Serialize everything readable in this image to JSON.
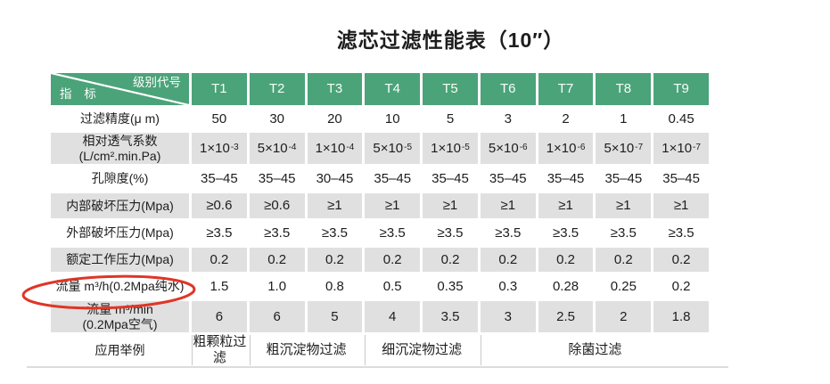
{
  "title": "滤芯过滤性能表（10″）",
  "colors": {
    "header_green": "#4ba37a",
    "row_shade_gray": "#e0e0e0",
    "annotation_red": "#e03526",
    "bottom_rule_gray": "#dcdcdc"
  },
  "table": {
    "corner": {
      "top_right": "级别代号",
      "bottom_left": "指 标"
    },
    "columns": [
      "T1",
      "T2",
      "T3",
      "T4",
      "T5",
      "T6",
      "T7",
      "T8",
      "T9"
    ],
    "rows": [
      {
        "label_lines": [
          "过滤精度(μ m)"
        ],
        "values": [
          "50",
          "30",
          "20",
          "10",
          "5",
          "3",
          "2",
          "1",
          "0.45"
        ]
      },
      {
        "label_lines": [
          "相对透气系数",
          "(L/cm².min.Pa)"
        ],
        "values": [
          {
            "t": "1×10",
            "sup": "-3"
          },
          {
            "t": "5×10",
            "sup": "-4"
          },
          {
            "t": "1×10",
            "sup": "-4"
          },
          {
            "t": "5×10",
            "sup": "-5"
          },
          {
            "t": "1×10",
            "sup": "-5"
          },
          {
            "t": "5×10",
            "sup": "-6"
          },
          {
            "t": "1×10",
            "sup": "-6"
          },
          {
            "t": "5×10",
            "sup": "-7"
          },
          {
            "t": "1×10",
            "sup": "-7"
          }
        ]
      },
      {
        "label_lines": [
          "孔隙度(%)"
        ],
        "values": [
          "35–45",
          "35–45",
          "30–45",
          "35–45",
          "35–45",
          "35–45",
          "35–45",
          "35–45",
          "35–45"
        ]
      },
      {
        "label_lines": [
          "内部破坏压力(Mpa)"
        ],
        "values": [
          "≥0.6",
          "≥0.6",
          "≥1",
          "≥1",
          "≥1",
          "≥1",
          "≥1",
          "≥1",
          "≥1"
        ]
      },
      {
        "label_lines": [
          "外部破坏压力(Mpa)"
        ],
        "values": [
          "≥3.5",
          "≥3.5",
          "≥3.5",
          "≥3.5",
          "≥3.5",
          "≥3.5",
          "≥3.5",
          "≥3.5",
          "≥3.5"
        ]
      },
      {
        "label_lines": [
          "额定工作压力(Mpa)"
        ],
        "values": [
          "0.2",
          "0.2",
          "0.2",
          "0.2",
          "0.2",
          "0.2",
          "0.2",
          "0.2",
          "0.2"
        ]
      },
      {
        "label_lines": [
          "流量 m³/h(0.2Mpa纯水)"
        ],
        "circled": true,
        "values": [
          "1.5",
          "1.0",
          "0.8",
          "0.5",
          "0.35",
          "0.3",
          "0.28",
          "0.25",
          "0.2"
        ]
      },
      {
        "label_lines": [
          "流量 m³/min",
          "(0.2Mpa空气)"
        ],
        "values": [
          "6",
          "6",
          "5",
          "4",
          "3.5",
          "3",
          "2.5",
          "2",
          "1.8"
        ]
      }
    ],
    "footer": {
      "label": "应用举例",
      "cells": [
        {
          "text": "粗颗粒过滤",
          "span": 1
        },
        {
          "text": "粗沉淀物过滤",
          "span": 2
        },
        {
          "text": "细沉淀物过滤",
          "span": 2
        },
        {
          "text": "除菌过滤",
          "span": 4
        }
      ]
    }
  },
  "annotation": {
    "shape": "hand-drawn-ellipse",
    "circled_text": "流量 m³/h(0.2Mpa纯水)"
  }
}
